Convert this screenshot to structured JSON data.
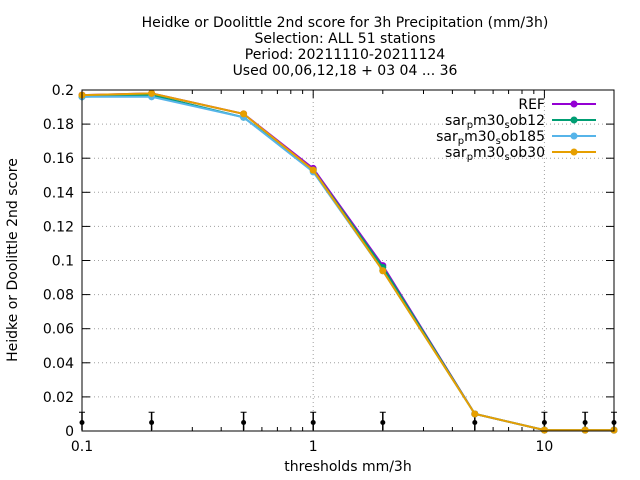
{
  "chart_data": {
    "type": "line",
    "title_lines": [
      "Heidke or Doolittle 2nd score  for 3h Precipitation (mm/3h)",
      "Selection: ALL     51 stations",
      "Period: 20211110-20211124",
      "Used 00,06,12,18 + 03 04 ... 36"
    ],
    "xlabel": "thresholds mm/3h",
    "ylabel": "Heidke or Doolittle 2nd score",
    "xscale": "log",
    "xlim": [
      0.1,
      20
    ],
    "ylim": [
      0,
      0.2
    ],
    "x_ticks": [
      {
        "value": 0.1,
        "label": "0.1"
      },
      {
        "value": 1,
        "label": "1"
      },
      {
        "value": 10,
        "label": "10"
      }
    ],
    "y_ticks": [
      {
        "value": 0,
        "label": "0"
      },
      {
        "value": 0.02,
        "label": "0.02"
      },
      {
        "value": 0.04,
        "label": "0.04"
      },
      {
        "value": 0.06,
        "label": "0.06"
      },
      {
        "value": 0.08,
        "label": "0.08"
      },
      {
        "value": 0.1,
        "label": "0.1"
      },
      {
        "value": 0.12,
        "label": "0.12"
      },
      {
        "value": 0.14,
        "label": "0.14"
      },
      {
        "value": 0.16,
        "label": "0.16"
      },
      {
        "value": 0.18,
        "label": "0.18"
      },
      {
        "value": 0.2,
        "label": "0.2"
      }
    ],
    "grid": true,
    "legend_position": "top-right",
    "x": [
      0.1,
      0.2,
      0.5,
      1,
      2,
      5,
      10,
      15,
      20
    ],
    "series": [
      {
        "name": "REF",
        "name_parts": [
          [
            "REF",
            ""
          ]
        ],
        "color": "#9400d3",
        "values": [
          0.197,
          0.198,
          0.186,
          0.154,
          0.097,
          0.01,
          0.0005,
          0.0005,
          0.0005
        ]
      },
      {
        "name": "sar_pm30_sob12",
        "name_parts": [
          [
            "sar",
            ""
          ],
          [
            "p",
            "sub"
          ],
          [
            "m30",
            ""
          ],
          [
            "s",
            "sub"
          ],
          [
            "ob12",
            ""
          ]
        ],
        "color": "#009e73",
        "values": [
          0.196,
          0.197,
          0.184,
          0.153,
          0.096,
          0.01,
          0.0005,
          0.0005,
          0.0005
        ]
      },
      {
        "name": "sar_pm30_sob185",
        "name_parts": [
          [
            "sar",
            ""
          ],
          [
            "p",
            "sub"
          ],
          [
            "m30",
            ""
          ],
          [
            "s",
            "sub"
          ],
          [
            "ob185",
            ""
          ]
        ],
        "color": "#56b4e9",
        "values": [
          0.196,
          0.196,
          0.184,
          0.152,
          0.094,
          0.01,
          0.0005,
          0.0005,
          0.0005
        ]
      },
      {
        "name": "sar_pm30_sob30",
        "name_parts": [
          [
            "sar",
            ""
          ],
          [
            "p",
            "sub"
          ],
          [
            "m30",
            ""
          ],
          [
            "s",
            "sub"
          ],
          [
            "ob30",
            ""
          ]
        ],
        "color": "#e69f00",
        "values": [
          0.197,
          0.198,
          0.186,
          0.153,
          0.094,
          0.01,
          0.0005,
          0.0005,
          0.0005
        ]
      }
    ],
    "bottom_markers_x": [
      0.1,
      0.2,
      0.5,
      1,
      2,
      5,
      10,
      15,
      20
    ]
  }
}
